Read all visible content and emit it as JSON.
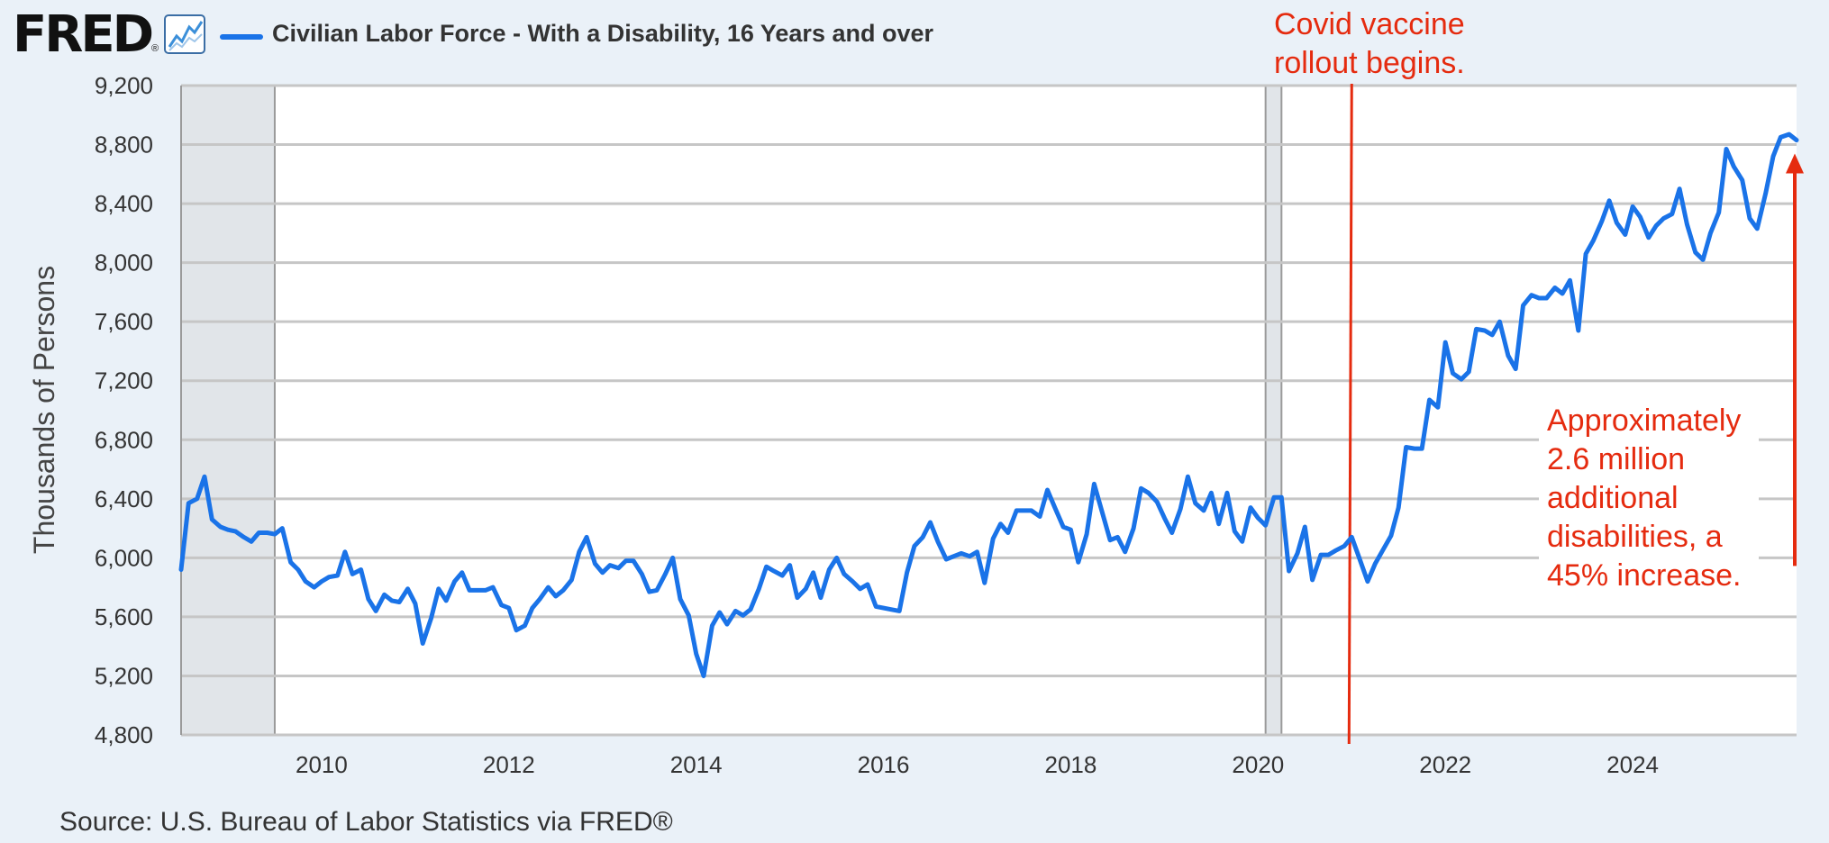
{
  "header": {
    "logo": "FRED",
    "logo_mark": "®",
    "series_label": "Civilian Labor Force - With a Disability, 16 Years and over",
    "series_color": "#1a73e8"
  },
  "source": "Source: U.S. Bureau of Labor Statistics via FRED®",
  "chart_data": {
    "type": "line",
    "title": "Civilian Labor Force - With a Disability, 16 Years and over",
    "ylabel": "Thousands of Persons",
    "xlabel": "",
    "xlim": [
      2008.5,
      2025.75
    ],
    "ylim": [
      4800,
      9200
    ],
    "yticks": [
      4800,
      5200,
      5600,
      6000,
      6400,
      6800,
      7200,
      7600,
      8000,
      8400,
      8800,
      9200
    ],
    "ytick_labels": [
      "4,800",
      "5,200",
      "5,600",
      "6,000",
      "6,400",
      "6,800",
      "7,200",
      "7,600",
      "8,000",
      "8,400",
      "8,800",
      "9,200"
    ],
    "xticks": [
      2010,
      2012,
      2014,
      2016,
      2018,
      2020,
      2022,
      2024
    ],
    "xtick_labels": [
      "2010",
      "2012",
      "2014",
      "2016",
      "2018",
      "2020",
      "2022",
      "2024"
    ],
    "grid": true,
    "line_color": "#1a73e8",
    "recessions": [
      {
        "start": 2008.5,
        "end": 2009.5
      },
      {
        "start": 2020.08,
        "end": 2020.25
      }
    ],
    "series": [
      {
        "name": "Civilian Labor Force - With a Disability, 16 Years and over",
        "x": [
          2008.5,
          2008.58,
          2008.67,
          2008.75,
          2008.83,
          2008.92,
          2009.0,
          2009.08,
          2009.17,
          2009.25,
          2009.33,
          2009.42,
          2009.5,
          2009.58,
          2009.67,
          2009.75,
          2009.83,
          2009.92,
          2010.0,
          2010.08,
          2010.17,
          2010.25,
          2010.33,
          2010.42,
          2010.5,
          2010.58,
          2010.67,
          2010.75,
          2010.83,
          2010.92,
          2011.0,
          2011.08,
          2011.17,
          2011.25,
          2011.33,
          2011.42,
          2011.5,
          2011.58,
          2011.67,
          2011.75,
          2011.83,
          2011.92,
          2012.0,
          2012.08,
          2012.17,
          2012.25,
          2012.33,
          2012.42,
          2012.5,
          2012.58,
          2012.67,
          2012.75,
          2012.83,
          2012.92,
          2013.0,
          2013.08,
          2013.17,
          2013.25,
          2013.33,
          2013.42,
          2013.5,
          2013.58,
          2013.67,
          2013.75,
          2013.83,
          2013.92,
          2014.0,
          2014.08,
          2014.17,
          2014.25,
          2014.33,
          2014.42,
          2014.5,
          2014.58,
          2014.67,
          2014.75,
          2014.83,
          2014.92,
          2015.0,
          2015.08,
          2015.17,
          2015.25,
          2015.33,
          2015.42,
          2015.5,
          2015.58,
          2015.67,
          2015.75,
          2015.83,
          2015.92,
          2016.0,
          2016.08,
          2016.17,
          2016.25,
          2016.33,
          2016.42,
          2016.5,
          2016.58,
          2016.67,
          2016.75,
          2016.83,
          2016.92,
          2017.0,
          2017.08,
          2017.17,
          2017.25,
          2017.33,
          2017.42,
          2017.5,
          2017.58,
          2017.67,
          2017.75,
          2017.83,
          2017.92,
          2018.0,
          2018.08,
          2018.17,
          2018.25,
          2018.33,
          2018.42,
          2018.5,
          2018.58,
          2018.67,
          2018.75,
          2018.83,
          2018.92,
          2019.0,
          2019.08,
          2019.17,
          2019.25,
          2019.33,
          2019.42,
          2019.5,
          2019.58,
          2019.67,
          2019.75,
          2019.83,
          2019.92,
          2020.0,
          2020.08,
          2020.17,
          2020.25,
          2020.33,
          2020.42,
          2020.5,
          2020.58,
          2020.67,
          2020.75,
          2020.83,
          2020.92,
          2021.0,
          2021.08,
          2021.17,
          2021.25,
          2021.33,
          2021.42,
          2021.5,
          2021.58,
          2021.67,
          2021.75,
          2021.83,
          2021.92,
          2022.0,
          2022.08,
          2022.17,
          2022.25,
          2022.33,
          2022.42,
          2022.5,
          2022.58,
          2022.67,
          2022.75,
          2022.83,
          2022.92,
          2023.0,
          2023.08,
          2023.17,
          2023.25,
          2023.33,
          2023.42,
          2023.5,
          2023.58,
          2023.67,
          2023.75,
          2023.83,
          2023.92,
          2024.0,
          2024.08,
          2024.17,
          2024.25,
          2024.33,
          2024.42,
          2024.5,
          2024.58,
          2024.67,
          2024.75,
          2024.83,
          2024.92,
          2025.0,
          2025.08,
          2025.17,
          2025.25,
          2025.33,
          2025.42,
          2025.5,
          2025.58,
          2025.67,
          2025.75
        ],
        "values": [
          5920,
          6370,
          6400,
          6550,
          6260,
          6210,
          6190,
          6180,
          6140,
          6110,
          6170,
          6170,
          6160,
          6200,
          5970,
          5920,
          5840,
          5800,
          5840,
          5870,
          5880,
          6040,
          5890,
          5920,
          5720,
          5640,
          5750,
          5710,
          5700,
          5790,
          5690,
          5420,
          5590,
          5790,
          5710,
          5840,
          5900,
          5780,
          5780,
          5780,
          5800,
          5680,
          5660,
          5510,
          5540,
          5660,
          5720,
          5800,
          5740,
          5780,
          5850,
          6040,
          6140,
          5960,
          5900,
          5950,
          5930,
          5980,
          5980,
          5890,
          5770,
          5780,
          5890,
          6000,
          5720,
          5610,
          5350,
          5200,
          5540,
          5630,
          5550,
          5640,
          5610,
          5650,
          5790,
          5940,
          5910,
          5880,
          5950,
          5730,
          5790,
          5900,
          5730,
          5920,
          6000,
          5890,
          5840,
          5790,
          5820,
          5670,
          5660,
          5650,
          5640,
          5900,
          6080,
          6140,
          6240,
          6110,
          5990,
          6010,
          6030,
          6010,
          6040,
          5830,
          6130,
          6230,
          6170,
          6320,
          6320,
          6320,
          6280,
          6460,
          6340,
          6210,
          6190,
          5970,
          6160,
          6500,
          6320,
          6120,
          6140,
          6040,
          6200,
          6470,
          6440,
          6380,
          6270,
          6170,
          6330,
          6550,
          6370,
          6320,
          6440,
          6230,
          6440,
          6180,
          6110,
          6340,
          6270,
          6220,
          6410,
          6410,
          5910,
          6030,
          6210,
          5850,
          6020,
          6020,
          6050,
          6080,
          6140,
          6000,
          5840,
          5960,
          6050,
          6150,
          6340,
          6750,
          6740,
          6740,
          7070,
          7020,
          7460,
          7250,
          7210,
          7260,
          7550,
          7540,
          7510,
          7600,
          7370,
          7280,
          7710,
          7780,
          7760,
          7760,
          7830,
          7790,
          7880,
          7540,
          8060,
          8150,
          8280,
          8420,
          8270,
          8190,
          8380,
          8310,
          8170,
          8250,
          8300,
          8330,
          8500,
          8260,
          8070,
          8020,
          8200,
          8340,
          8770,
          8650,
          8560,
          8300,
          8230,
          8470,
          8720,
          8850,
          8870,
          8830
        ]
      }
    ],
    "annotations": [
      {
        "text_lines": [
          "Covid vaccine",
          "rollout begins."
        ],
        "x": 2021.0,
        "color": "#e52b0f"
      },
      {
        "text_lines": [
          "Approximately",
          "2.6 million",
          "additional",
          "disabilities, a",
          "45% increase."
        ],
        "x_arrow": 2025.75,
        "y_from": 6140,
        "y_to": 8800,
        "color": "#e52b0f"
      }
    ]
  }
}
